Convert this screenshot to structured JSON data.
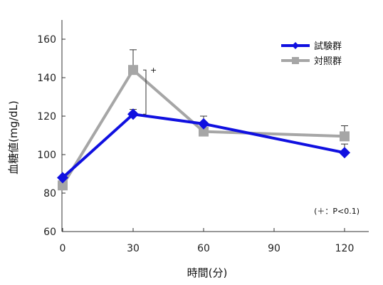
{
  "chart_data": {
    "type": "line",
    "xlabel": "時間(分)",
    "ylabel": "血糖値(mg/dL)",
    "xlim": [
      0,
      130
    ],
    "ylim": [
      60,
      170
    ],
    "x_ticks": [
      "0",
      "30",
      "60",
      "90",
      "120"
    ],
    "y_ticks": [
      "60",
      "80",
      "100",
      "120",
      "140",
      "160"
    ],
    "x": [
      0,
      30,
      60,
      120
    ],
    "grid": false,
    "legend_position": "top-right",
    "series": [
      {
        "name": "試験群",
        "color": "#1010e0",
        "marker": "diamond",
        "values": [
          88,
          121,
          116,
          101
        ],
        "error": [
          0,
          2.5,
          4,
          4.5
        ]
      },
      {
        "name": "対照群",
        "color": "#a6a6a6",
        "marker": "square",
        "values": [
          84,
          144,
          112,
          109.5
        ],
        "error": [
          0,
          10.5,
          0,
          5.5
        ]
      }
    ],
    "significance": {
      "x": 30,
      "mark": "+"
    },
    "note": "(＋：P<0.1)"
  }
}
